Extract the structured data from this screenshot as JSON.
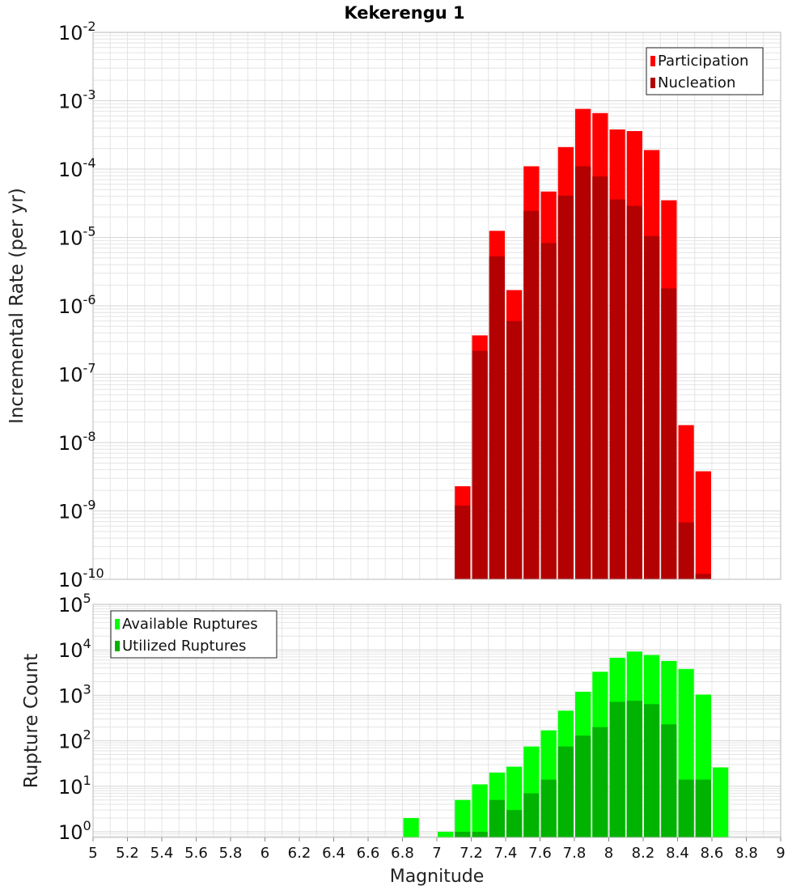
{
  "title": "Kekerengu 1",
  "xlabel": "Magnitude",
  "x_ticks": [
    "5",
    "5.2",
    "5.4",
    "5.6",
    "5.8",
    "6",
    "6.2",
    "6.4",
    "6.6",
    "6.8",
    "7",
    "7.2",
    "7.4",
    "7.6",
    "7.8",
    "8",
    "8.2",
    "8.4",
    "8.6",
    "8.8",
    "9"
  ],
  "colors": {
    "participation": "#ff0000",
    "nucleation": "#b30000",
    "available": "#00ff00",
    "utilized": "#00b300",
    "grid": "#e4e4e4",
    "frame": "#b8b8b8"
  },
  "chart_data": [
    {
      "type": "bar",
      "title": "Kekerengu 1",
      "xlabel": "Magnitude",
      "ylabel": "Incremental Rate (per yr)",
      "xlim": [
        5,
        9
      ],
      "ylim": [
        1e-10,
        0.01
      ],
      "y_scale": "log",
      "y_tick_exponents": [
        -10,
        -9,
        -8,
        -7,
        -6,
        -5,
        -4,
        -3,
        -2
      ],
      "grid": true,
      "legend_position": "top-right",
      "x": [
        7.15,
        7.25,
        7.35,
        7.45,
        7.55,
        7.65,
        7.75,
        7.85,
        7.95,
        8.05,
        8.15,
        8.25,
        8.35,
        8.45,
        8.55
      ],
      "series": [
        {
          "name": "Participation",
          "values": [
            2.3e-09,
            3.7e-07,
            1.25e-05,
            1.7e-06,
            0.00011,
            4.7e-05,
            0.00021,
            0.00076,
            0.00066,
            0.00038,
            0.00036,
            0.00019,
            3.5e-05,
            1.8e-08,
            3.8e-09
          ]
        },
        {
          "name": "Nucleation",
          "values": [
            1.2e-09,
            2.2e-07,
            5.3e-06,
            6e-07,
            2.45e-05,
            8.3e-06,
            4.1e-05,
            0.00011,
            7.8e-05,
            3.6e-05,
            2.9e-05,
            1.05e-05,
            1.8e-06,
            6.8e-10,
            1.2e-10
          ]
        }
      ]
    },
    {
      "type": "bar",
      "xlabel": "Magnitude",
      "ylabel": "Rupture Count",
      "xlim": [
        5,
        9
      ],
      "ylim": [
        0.75,
        100000.0
      ],
      "y_scale": "log",
      "y_tick_exponents": [
        0,
        1,
        2,
        3,
        4,
        5
      ],
      "grid": true,
      "legend_position": "top-left",
      "x": [
        6.85,
        7.05,
        7.15,
        7.25,
        7.35,
        7.45,
        7.55,
        7.65,
        7.75,
        7.85,
        7.95,
        8.05,
        8.15,
        8.25,
        8.35,
        8.45,
        8.55,
        8.65
      ],
      "series": [
        {
          "name": "Available Ruptures",
          "values": [
            2,
            1,
            5,
            11,
            20,
            27,
            75,
            170,
            460,
            1200,
            3300,
            6700,
            9200,
            7700,
            5700,
            3800,
            1040,
            26
          ]
        },
        {
          "name": "Utilized Ruptures",
          "values": [
            0,
            0,
            1,
            1,
            5,
            3,
            7,
            14,
            75,
            130,
            200,
            720,
            760,
            640,
            230,
            14,
            14,
            0
          ]
        }
      ]
    }
  ]
}
